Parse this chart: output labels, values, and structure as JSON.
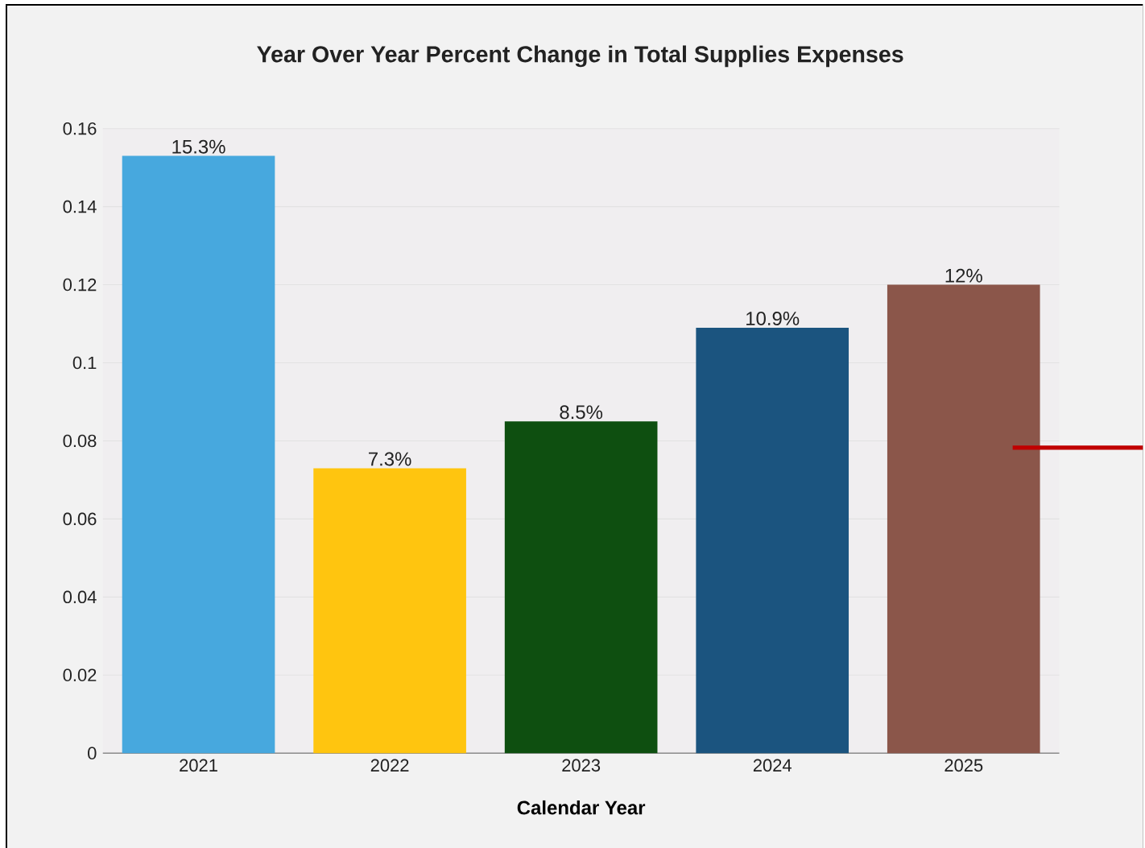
{
  "chart_data": {
    "type": "bar",
    "title": "Year Over Year Percent Change in Total Supplies Expenses",
    "xlabel": "Calendar Year",
    "categories": [
      "2021",
      "2022",
      "2023",
      "2024",
      "2025"
    ],
    "values": [
      0.153,
      0.073,
      0.085,
      0.109,
      0.12
    ],
    "colors": [
      "#47a8de",
      "#ffc50f",
      "#0e4f10",
      "#1b547f",
      "#8b564a"
    ],
    "value_labels": [
      "15.3%",
      "7.3%",
      "8.5%",
      "10.9%",
      "12%"
    ],
    "ylim": [
      0,
      0.16
    ],
    "yticks": [
      0,
      0.02,
      0.04,
      0.06,
      0.08,
      0.1,
      0.12,
      0.14,
      0.16
    ],
    "grid": "y"
  }
}
